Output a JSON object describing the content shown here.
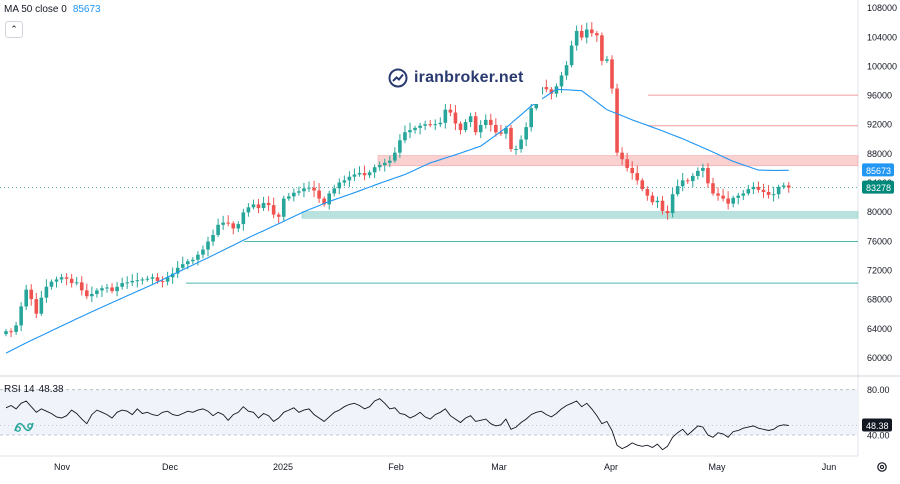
{
  "legend": {
    "label": "MA 50 close 0",
    "value": "85673"
  },
  "collapse_icon": "chevron-up-icon",
  "rsi": {
    "label": "RSI 14",
    "value": "48.38",
    "upper_level": "80.00",
    "lower_level": "40.00",
    "current_tag": "48.38"
  },
  "watermark": {
    "text": "iranbroker.net",
    "icon": "iranbroker-logo-icon"
  },
  "price_axis": {
    "ticks": [
      "108000",
      "104000",
      "100000",
      "96000",
      "92000",
      "88000",
      "84000",
      "80000",
      "76000",
      "72000",
      "68000",
      "64000",
      "60000"
    ],
    "ma_tag": "85673",
    "price_tag": "83278"
  },
  "time_axis": {
    "labels": [
      "Nov",
      "Dec",
      "2025",
      "Feb",
      "Mar",
      "Apr",
      "May",
      "Jun"
    ]
  },
  "colors": {
    "up": "#26a69a",
    "down": "#ef5350",
    "ma": "#2196f3",
    "resistance_zone": "#f8c9c9",
    "support_zone": "#b2dfdb",
    "red_line": "#ef9a9a",
    "teal_line": "#4db6ac",
    "rsi_line": "#131722"
  },
  "settings_icon": "gear-icon",
  "chart_data": {
    "type": "candlestick",
    "series_name": "",
    "ylim": [
      58000,
      108500
    ],
    "levels": {
      "resistance_zone": [
        86300,
        87700
      ],
      "support_zone": [
        79100,
        80000
      ],
      "red_lines": [
        96000,
        91800
      ],
      "teal_lines": [
        75900,
        70200
      ]
    },
    "close": [
      63600,
      63500,
      64400,
      67000,
      69300,
      68000,
      66000,
      68200,
      69700,
      70400,
      70700,
      71000,
      70800,
      70200,
      70300,
      69200,
      68400,
      68700,
      69200,
      69500,
      69600,
      69100,
      69700,
      70200,
      70300,
      70500,
      70600,
      70700,
      70800,
      71000,
      70500,
      70400,
      71000,
      71500,
      72300,
      72800,
      73200,
      73400,
      74100,
      74800,
      75900,
      76800,
      78200,
      78500,
      78400,
      77700,
      78300,
      79900,
      80600,
      81000,
      80500,
      81200,
      80900,
      79600,
      79300,
      81800,
      82100,
      82600,
      82800,
      83200,
      83300,
      82900,
      81800,
      81000,
      82500,
      83200,
      84000,
      84300,
      84800,
      85100,
      85300,
      85000,
      85400,
      86100,
      86400,
      86700,
      87000,
      88100,
      89800,
      90900,
      91200,
      91500,
      91800,
      92000,
      91900,
      92000,
      92200,
      94000,
      93600,
      92100,
      91200,
      92300,
      93100,
      90900,
      91900,
      92600,
      91900,
      90900,
      90700,
      91500,
      88600,
      88600,
      89900,
      91600,
      94200,
      96100,
      97100,
      96800,
      96200,
      97200,
      98700,
      100100,
      102800,
      104800,
      103900,
      105000,
      104500,
      104200,
      100700,
      100900,
      96900,
      88100,
      87200,
      86000,
      85300,
      84300,
      83100,
      82200,
      81300,
      81500,
      80100,
      79800,
      82400,
      83500,
      84300,
      84200,
      84900,
      85600,
      86000,
      83900,
      82500,
      82200,
      81800,
      81100,
      81900,
      82200,
      82500,
      83100,
      83400,
      83000,
      82700,
      82300,
      82400,
      83400,
      83600,
      83300
    ],
    "ma50": [
      60600,
      60950,
      61300,
      61650,
      62000,
      62330,
      62660,
      62990,
      63320,
      63650,
      63980,
      64310,
      64640,
      64970,
      65300,
      65620,
      65940,
      66260,
      66580,
      66900,
      67210,
      67520,
      67830,
      68140,
      68450,
      68760,
      69070,
      69380,
      69690,
      70000,
      70340,
      70680,
      71020,
      71360,
      71700,
      72030,
      72360,
      72690,
      73020,
      73350,
      73690,
      74030,
      74370,
      74710,
      75050,
      75390,
      75730,
      76070,
      76410,
      76750,
      77070,
      77390,
      77710,
      78030,
      78350,
      78680,
      79010,
      79340,
      79670,
      80000,
      80280,
      80560,
      80840,
      81120,
      81400,
      81640,
      81880,
      82120,
      82360,
      82600,
      82860,
      83120,
      83380,
      83640,
      83900,
      84140,
      84380,
      84620,
      84860,
      85100,
      85420,
      85740,
      86060,
      86380,
      86700,
      86920,
      87140,
      87360,
      87580,
      87800,
      88040,
      88280,
      88520,
      88760,
      89000,
      89500,
      90000,
      90500,
      91000,
      91500,
      92100,
      92700,
      93300,
      93900,
      94500,
      94960,
      95420,
      95880,
      96340,
      96800,
      96760,
      96720,
      96680,
      96640,
      96600,
      96080,
      95560,
      95040,
      94520,
      94000,
      93720,
      93440,
      93160,
      92880,
      92600,
      92350,
      92100,
      91850,
      91600,
      91350,
      91080,
      90810,
      90540,
      90270,
      90000,
      89700,
      89400,
      89100,
      88800,
      88500,
      88180,
      87860,
      87540,
      87220,
      86900,
      86660,
      86420,
      86180,
      85940,
      85700,
      85690,
      85680,
      85670,
      85670,
      85673,
      85673
    ],
    "rsi": [
      64,
      66,
      63,
      68,
      70,
      65,
      60,
      63,
      61,
      59,
      56,
      55,
      57,
      62,
      59,
      54,
      50,
      58,
      62,
      60,
      58,
      55,
      60,
      62,
      61,
      58,
      63,
      59,
      60,
      58,
      57,
      60,
      61,
      58,
      57,
      59,
      61,
      60,
      62,
      63,
      61,
      57,
      60,
      58,
      53,
      58,
      60,
      65,
      61,
      60,
      55,
      59,
      57,
      52,
      55,
      60,
      62,
      64,
      60,
      62,
      63,
      58,
      55,
      52,
      56,
      60,
      62,
      65,
      67,
      68,
      66,
      63,
      65,
      70,
      72,
      68,
      63,
      64,
      59,
      58,
      55,
      57,
      60,
      56,
      54,
      58,
      60,
      63,
      57,
      54,
      51,
      55,
      57,
      52,
      53,
      54,
      50,
      48,
      49,
      54,
      45,
      47,
      51,
      54,
      58,
      60,
      61,
      58,
      56,
      59,
      63,
      66,
      68,
      70,
      65,
      68,
      63,
      57,
      50,
      52,
      44,
      31,
      28,
      30,
      33,
      31,
      30,
      31,
      29,
      32,
      27,
      30,
      38,
      42,
      45,
      40,
      44,
      48,
      47,
      40,
      38,
      42,
      41,
      38,
      43,
      44,
      46,
      47,
      48,
      46,
      45,
      44,
      45,
      48,
      49,
      48.38
    ],
    "time_labels": [
      "Nov",
      "Dec",
      "2025",
      "Feb",
      "Mar",
      "Apr",
      "May",
      "Jun"
    ],
    "rsi_levels": [
      80,
      40
    ]
  }
}
